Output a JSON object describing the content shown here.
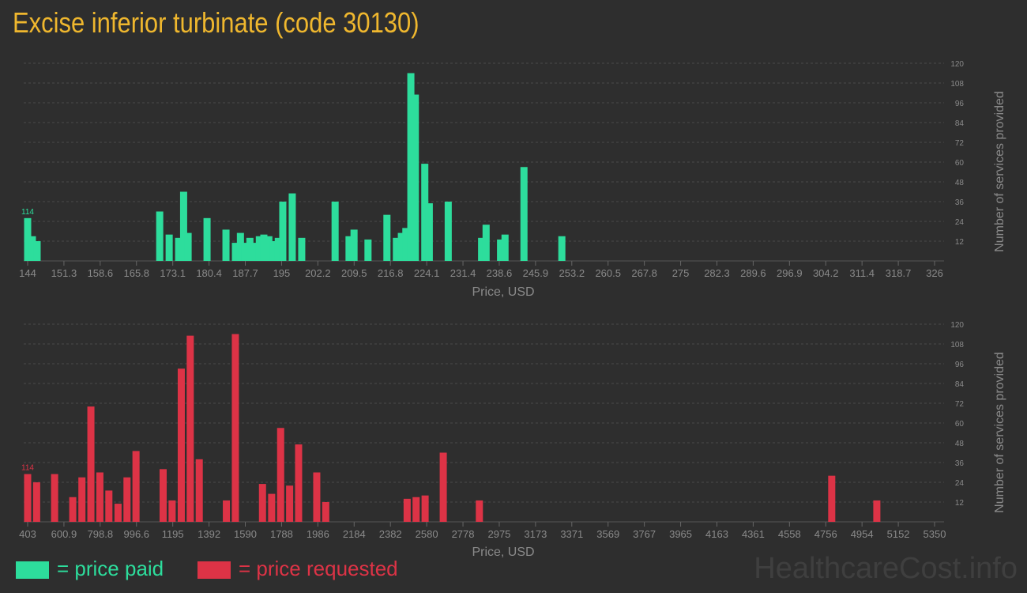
{
  "title": "Excise inferior turbinate (code 30130)",
  "legend": {
    "paid_label": "= price paid",
    "requested_label": "= price requested"
  },
  "watermark": "HealthcareCost.info",
  "colors": {
    "background": "#2e2e2e",
    "title": "#efb72e",
    "paid": "#2ddd9c",
    "requested": "#dd3346",
    "axis_text": "#8a8a8a",
    "grid": "#4a4a4a"
  },
  "chart_data": [
    {
      "type": "bar",
      "series_key": "paid",
      "xlabel": "Price, USD",
      "ylabel": "Number of services provided",
      "x_ticks": [
        "144",
        "151.3",
        "158.6",
        "165.8",
        "173.1",
        "180.4",
        "187.7",
        "195",
        "202.2",
        "209.5",
        "216.8",
        "224.1",
        "231.4",
        "238.6",
        "245.9",
        "253.2",
        "260.5",
        "267.8",
        "275",
        "282.3",
        "289.6",
        "296.9",
        "304.2",
        "311.4",
        "318.7",
        "326"
      ],
      "xlim": [
        144,
        326
      ],
      "y_ticks": [
        12,
        24,
        36,
        48,
        60,
        72,
        84,
        96,
        108,
        120
      ],
      "ylim": [
        0,
        120
      ],
      "grid": true,
      "peak_label": "114",
      "bars": [
        {
          "x": 144,
          "y": 26
        },
        {
          "x": 144.95,
          "y": 15
        },
        {
          "x": 145.9,
          "y": 12
        },
        {
          "x": 170.5,
          "y": 30
        },
        {
          "x": 172.4,
          "y": 16
        },
        {
          "x": 174.3,
          "y": 14
        },
        {
          "x": 175.3,
          "y": 42
        },
        {
          "x": 176.2,
          "y": 17
        },
        {
          "x": 180.0,
          "y": 26
        },
        {
          "x": 183.8,
          "y": 19
        },
        {
          "x": 185.7,
          "y": 11
        },
        {
          "x": 186.7,
          "y": 17
        },
        {
          "x": 187.6,
          "y": 11
        },
        {
          "x": 188.6,
          "y": 14
        },
        {
          "x": 189.5,
          "y": 11
        },
        {
          "x": 190.5,
          "y": 15
        },
        {
          "x": 191.4,
          "y": 16
        },
        {
          "x": 192.4,
          "y": 15
        },
        {
          "x": 193.3,
          "y": 12
        },
        {
          "x": 194.3,
          "y": 14
        },
        {
          "x": 195.2,
          "y": 36
        },
        {
          "x": 197.1,
          "y": 41
        },
        {
          "x": 199.0,
          "y": 14
        },
        {
          "x": 205.7,
          "y": 36
        },
        {
          "x": 208.5,
          "y": 15
        },
        {
          "x": 209.5,
          "y": 19
        },
        {
          "x": 212.3,
          "y": 13
        },
        {
          "x": 216.1,
          "y": 28
        },
        {
          "x": 218.0,
          "y": 14
        },
        {
          "x": 219.0,
          "y": 17
        },
        {
          "x": 219.9,
          "y": 20
        },
        {
          "x": 220.9,
          "y": 114
        },
        {
          "x": 221.8,
          "y": 101
        },
        {
          "x": 223.7,
          "y": 59
        },
        {
          "x": 224.6,
          "y": 35
        },
        {
          "x": 228.4,
          "y": 36
        },
        {
          "x": 235.1,
          "y": 14
        },
        {
          "x": 236.0,
          "y": 22
        },
        {
          "x": 238.9,
          "y": 13
        },
        {
          "x": 239.8,
          "y": 16
        },
        {
          "x": 243.6,
          "y": 57
        },
        {
          "x": 251.2,
          "y": 15
        }
      ]
    },
    {
      "type": "bar",
      "series_key": "requested",
      "xlabel": "Price, USD",
      "ylabel": "Number of services provided",
      "x_ticks": [
        "403",
        "600.9",
        "798.8",
        "996.6",
        "1195",
        "1392",
        "1590",
        "1788",
        "1986",
        "2184",
        "2382",
        "2580",
        "2778",
        "2975",
        "3173",
        "3371",
        "3569",
        "3767",
        "3965",
        "4163",
        "4361",
        "4558",
        "4756",
        "4954",
        "5152",
        "5350"
      ],
      "xlim": [
        403,
        5350
      ],
      "y_ticks": [
        12,
        24,
        36,
        48,
        60,
        72,
        84,
        96,
        108,
        120
      ],
      "ylim": [
        0,
        120
      ],
      "grid": true,
      "peak_label": "114",
      "bars": [
        {
          "x": 403,
          "y": 29
        },
        {
          "x": 452,
          "y": 24
        },
        {
          "x": 550,
          "y": 29
        },
        {
          "x": 649,
          "y": 15
        },
        {
          "x": 699,
          "y": 27
        },
        {
          "x": 748,
          "y": 70
        },
        {
          "x": 797,
          "y": 30
        },
        {
          "x": 846,
          "y": 19
        },
        {
          "x": 896,
          "y": 11
        },
        {
          "x": 945,
          "y": 27
        },
        {
          "x": 994,
          "y": 43
        },
        {
          "x": 1142,
          "y": 32
        },
        {
          "x": 1191,
          "y": 13
        },
        {
          "x": 1241,
          "y": 93
        },
        {
          "x": 1290,
          "y": 113
        },
        {
          "x": 1339,
          "y": 38
        },
        {
          "x": 1487,
          "y": 13
        },
        {
          "x": 1536,
          "y": 114
        },
        {
          "x": 1684,
          "y": 23
        },
        {
          "x": 1734,
          "y": 17
        },
        {
          "x": 1783,
          "y": 57
        },
        {
          "x": 1832,
          "y": 22
        },
        {
          "x": 1881,
          "y": 47
        },
        {
          "x": 1980,
          "y": 30
        },
        {
          "x": 2029,
          "y": 12
        },
        {
          "x": 2473,
          "y": 14
        },
        {
          "x": 2522,
          "y": 15
        },
        {
          "x": 2571,
          "y": 16
        },
        {
          "x": 2670,
          "y": 42
        },
        {
          "x": 2867,
          "y": 13
        },
        {
          "x": 4789,
          "y": 28
        },
        {
          "x": 5035,
          "y": 13
        }
      ]
    }
  ]
}
